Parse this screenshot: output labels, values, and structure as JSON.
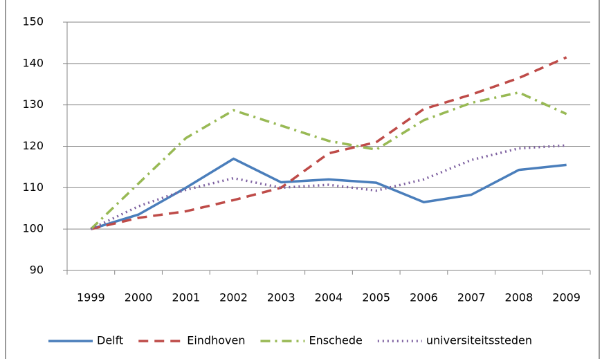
{
  "chart_data": {
    "type": "line",
    "categories": [
      "1999",
      "2000",
      "2001",
      "2002",
      "2003",
      "2004",
      "2005",
      "2006",
      "2007",
      "2008",
      "2009"
    ],
    "series": [
      {
        "name": "Delft",
        "color": "#4a7ebb",
        "dash": "solid",
        "values": [
          100,
          103.5,
          110,
          117,
          111.3,
          112,
          111.2,
          106.5,
          108.3,
          114.3,
          115.5
        ]
      },
      {
        "name": "Eindhoven",
        "color": "#be4b48",
        "dash": "dashed",
        "values": [
          100,
          102.7,
          104.3,
          107,
          110,
          118.3,
          121,
          129,
          132.5,
          136.5,
          141.5
        ]
      },
      {
        "name": "Enschede",
        "color": "#98b954",
        "dash": "dashdot",
        "values": [
          100,
          111,
          122,
          128.7,
          125,
          121.3,
          119.2,
          126.3,
          130.5,
          133,
          127.8
        ]
      },
      {
        "name": "universiteitssteden",
        "color": "#7d60a0",
        "dash": "dotted",
        "values": [
          100,
          105.5,
          109.5,
          112.3,
          110,
          110.7,
          109.3,
          112,
          116.7,
          119.5,
          120.2
        ]
      }
    ],
    "ylim": [
      90,
      150
    ],
    "yticks": [
      90,
      100,
      110,
      120,
      130,
      140,
      150
    ],
    "grid": true,
    "legend": "bottom"
  }
}
